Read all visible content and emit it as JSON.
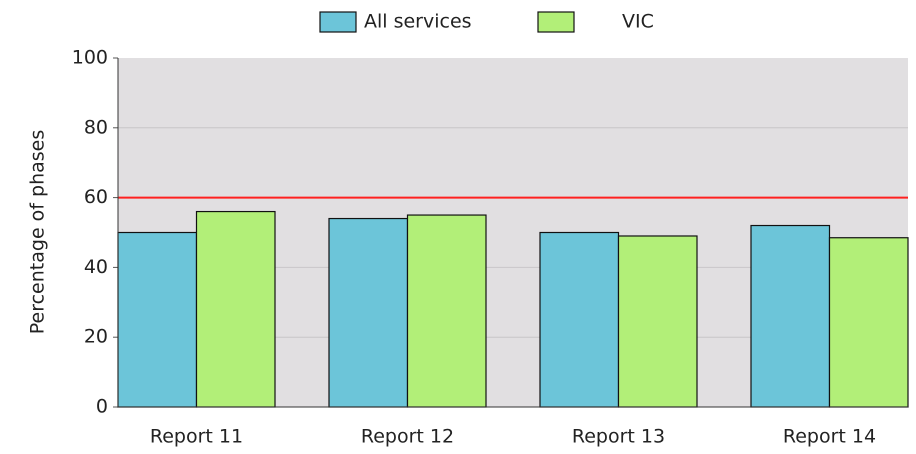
{
  "chart_data": {
    "type": "bar",
    "y_label": "Percentage of phases",
    "categories": [
      "Report 11",
      "Report 12",
      "Report 13",
      "Report 14"
    ],
    "series": [
      {
        "name": "All services",
        "color": "#6cc5d9",
        "values": [
          50,
          54,
          50,
          52
        ]
      },
      {
        "name": "VIC",
        "color": "#b2ef78",
        "values": [
          56,
          55,
          49,
          48.5
        ]
      }
    ],
    "ylim": [
      0,
      100
    ],
    "yticks": [
      0,
      20,
      40,
      60,
      80,
      100
    ],
    "grid": true,
    "reference_line": 60,
    "reference_color": "#ff2020",
    "legend": "top"
  }
}
